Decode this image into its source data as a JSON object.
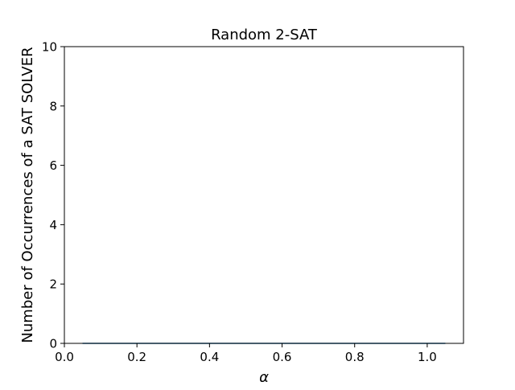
{
  "chart_data": {
    "type": "line",
    "title": "Random 2-SAT",
    "xlabel": "α",
    "ylabel": "Number of Occurrences of a SAT SOLVER",
    "xlim": [
      0.0,
      1.1
    ],
    "ylim": [
      0,
      10
    ],
    "xticks": [
      0.0,
      0.2,
      0.4,
      0.6,
      0.8,
      1.0
    ],
    "xtick_labels": [
      "0.0",
      "0.2",
      "0.4",
      "0.6",
      "0.8",
      "1.0"
    ],
    "yticks": [
      0,
      2,
      4,
      6,
      8,
      10
    ],
    "ytick_labels": [
      "0",
      "2",
      "4",
      "6",
      "8",
      "10"
    ],
    "grid": false,
    "series": [
      {
        "color": "#1f77b4",
        "x": [
          0.05,
          0.1,
          0.15,
          0.2,
          0.25,
          0.3,
          0.35,
          0.4,
          0.45,
          0.5,
          0.55,
          0.6,
          0.65,
          0.7,
          0.75,
          0.8,
          0.85,
          0.9,
          0.95,
          1.0,
          1.05
        ],
        "y": [
          0,
          0,
          0,
          0,
          0,
          0,
          0,
          0,
          0,
          0,
          0,
          0,
          0,
          0,
          0,
          0,
          0,
          0,
          0,
          0,
          0
        ]
      }
    ]
  }
}
